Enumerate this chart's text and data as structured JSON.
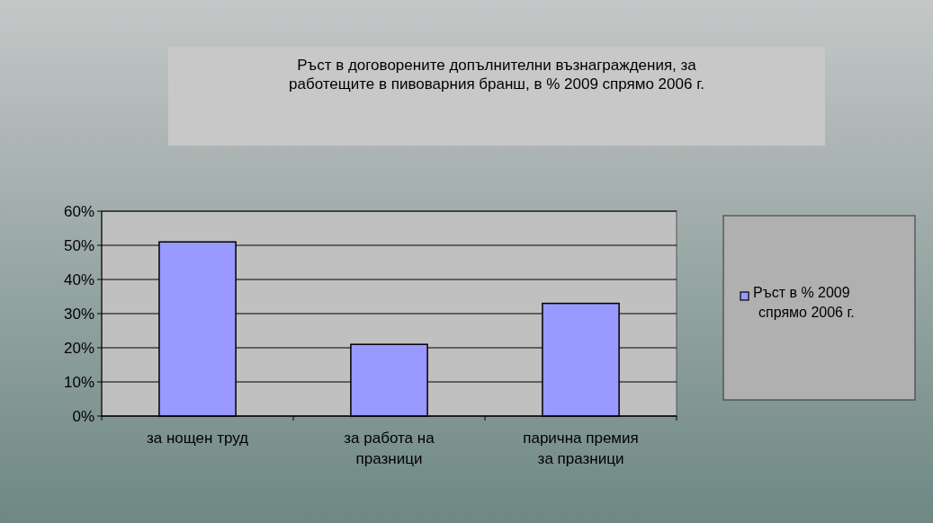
{
  "chart_data": {
    "type": "bar",
    "title": "Ръст в договорените допълнителни възнаграждения, за работещите в пивоварния бранш, в % 2009 спрямо 2006 г.",
    "categories": [
      "за нощен труд",
      "за работа на празници",
      "парична премия за празници"
    ],
    "series": [
      {
        "name": "Ръст в % 2009 спрямо 2006 г.",
        "color": "#9999ff",
        "values": [
          51,
          21,
          33
        ]
      }
    ],
    "ylim": [
      0,
      60
    ],
    "yticks": [
      {
        "value": 0,
        "label": "0%"
      },
      {
        "value": 10,
        "label": "10%"
      },
      {
        "value": 20,
        "label": "20%"
      },
      {
        "value": 30,
        "label": "30%"
      },
      {
        "value": 40,
        "label": "40%"
      },
      {
        "value": 50,
        "label": "50%"
      },
      {
        "value": 60,
        "label": "60%"
      }
    ],
    "grid": "y",
    "legend": "right"
  }
}
